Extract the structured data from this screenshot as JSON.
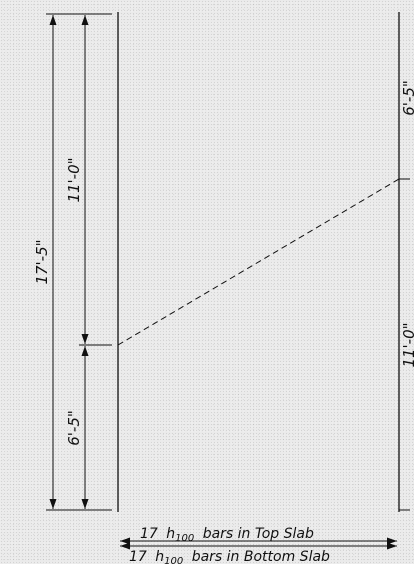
{
  "dimensions": {
    "overall": "17'-5\"",
    "upper": "11'-0\"",
    "lower": "6'-5\"",
    "right_top_partial": "6'-5\"",
    "right_bottom_partial": "11'-0\""
  },
  "notes": {
    "top_slab_count": "17",
    "top_slab_bar_main": "h",
    "top_slab_bar_sub": "100",
    "top_slab_text": "bars in Top Slab",
    "bottom_slab_count": "17",
    "bottom_slab_bar_main": "h",
    "bottom_slab_bar_sub": "100",
    "bottom_slab_text": "bars in Bottom Slab"
  },
  "colors": {
    "line": "#111111",
    "background": "#ebebeb"
  }
}
